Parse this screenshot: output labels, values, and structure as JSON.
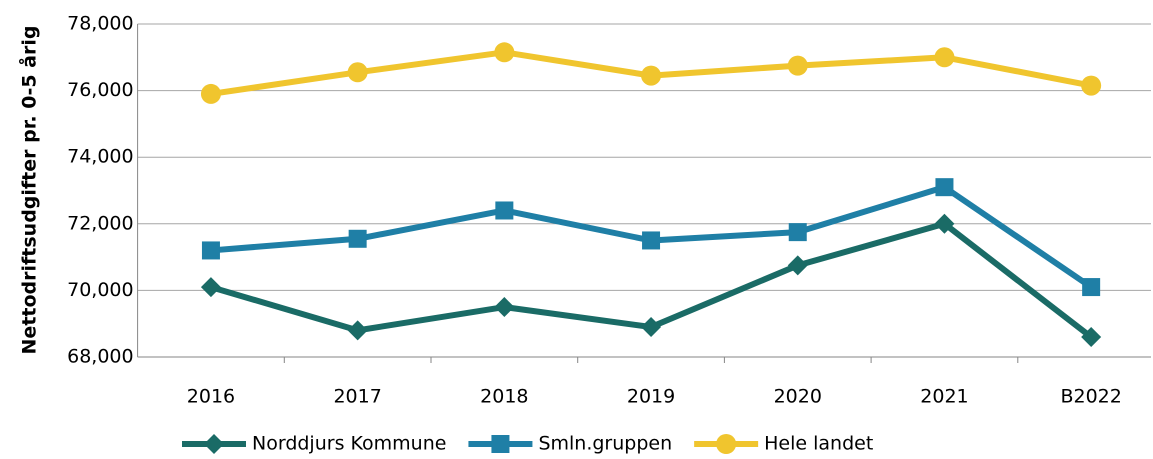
{
  "chart_data": {
    "type": "line",
    "y_label": "Nettodriftsudgifter pr. 0-5 årig",
    "categories": [
      "2016",
      "2017",
      "2018",
      "2019",
      "2020",
      "2021",
      "B2022"
    ],
    "series": [
      {
        "name": "Norddjurs Kommune",
        "color": "#1a6b66",
        "marker": "diamond",
        "values": [
          70100,
          68800,
          69500,
          68900,
          70750,
          72000,
          68600
        ]
      },
      {
        "name": "Smln.gruppen",
        "color": "#1f7fa6",
        "marker": "square",
        "values": [
          71200,
          71550,
          72400,
          71500,
          71750,
          73100,
          70100
        ]
      },
      {
        "name": "Hele landet",
        "color": "#f0c52e",
        "marker": "circle",
        "values": [
          75900,
          76550,
          77150,
          76450,
          76750,
          77000,
          76150
        ]
      }
    ],
    "ylim": [
      68000,
      78000
    ],
    "yticks": [
      {
        "value": 68000,
        "label": "68,000"
      },
      {
        "value": 70000,
        "label": "70,000"
      },
      {
        "value": 72000,
        "label": "72,000"
      },
      {
        "value": 74000,
        "label": "74,000"
      },
      {
        "value": 76000,
        "label": "76,000"
      },
      {
        "value": 78000,
        "label": "78,000"
      }
    ],
    "grid": true,
    "legend": "bottom"
  }
}
